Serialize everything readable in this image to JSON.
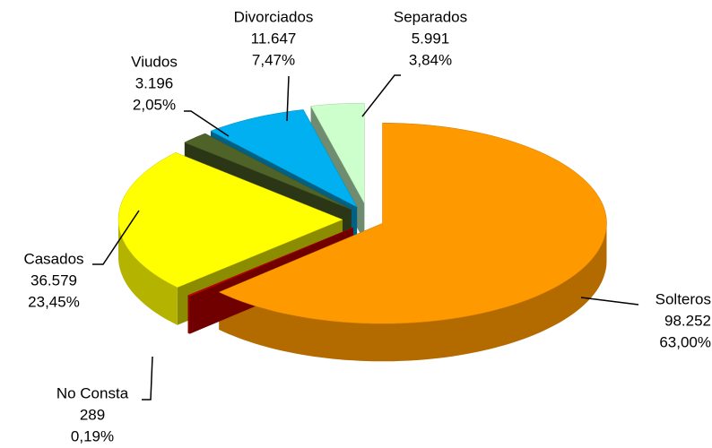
{
  "chart_data": {
    "type": "pie3d",
    "categories": [
      "Solteros",
      "No Consta",
      "Casados",
      "Viudos",
      "Divorciados",
      "Separados"
    ],
    "values": [
      98252,
      289,
      36579,
      3196,
      11647,
      5991
    ],
    "value_labels": [
      "98.252",
      "289",
      "36.579",
      "3.196",
      "11.647",
      "5.991"
    ],
    "percentages": [
      63.0,
      0.19,
      23.45,
      2.05,
      7.47,
      3.84
    ],
    "percentage_labels": [
      "63,00%",
      "0,19%",
      "23,45%",
      "2,05%",
      "7,47%",
      "3,84%"
    ],
    "colors": [
      "#ff9900",
      "#cc0000",
      "#ffff00",
      "#4f6228",
      "#00b0f0",
      "#ccffcc"
    ]
  }
}
